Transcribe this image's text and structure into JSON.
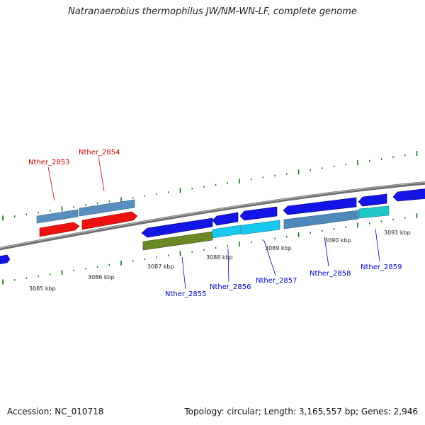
{
  "title": "Natranaerobius thermophilus JW/NM-WN-LF, complete genome",
  "footer": {
    "accession": "Accession: NC_010718",
    "summary": "Topology: circular; Length: 3,165,557 bp; Genes: 2,946"
  },
  "colors": {
    "highlight_label": "#cc0000",
    "normal_label": "#0000cc",
    "blue_gene": "#1414e6",
    "cyan_gene": "#19c8ee",
    "steel_gene": "#4f88b8",
    "red_gene": "#ee1111",
    "olive_gene": "#6b8a26",
    "teal_gene": "#1fc8c8",
    "tick_green": "#0a7a0a",
    "backbone": "#8a8a8a"
  },
  "kbp_labels": [
    {
      "text": "3085 kbp",
      "kb": 3085
    },
    {
      "text": "3086 kbp",
      "kb": 3086
    },
    {
      "text": "3087 kbp",
      "kb": 3087
    },
    {
      "text": "3088 kbp",
      "kb": 3088
    },
    {
      "text": "3089 kbp",
      "kb": 3089
    },
    {
      "text": "3090 kbp",
      "kb": 3090
    },
    {
      "text": "3091 kbp",
      "kb": 3091
    }
  ],
  "gene_labels": [
    {
      "text": "Nther_2853",
      "highlight": true
    },
    {
      "text": "Nther_2854",
      "highlight": true
    },
    {
      "text": "Nther_2855",
      "highlight": false
    },
    {
      "text": "Nther_2856",
      "highlight": false
    },
    {
      "text": "Nther_2857",
      "highlight": false
    },
    {
      "text": "Nther_2858",
      "highlight": false
    },
    {
      "text": "Nther_2859",
      "highlight": false
    }
  ]
}
